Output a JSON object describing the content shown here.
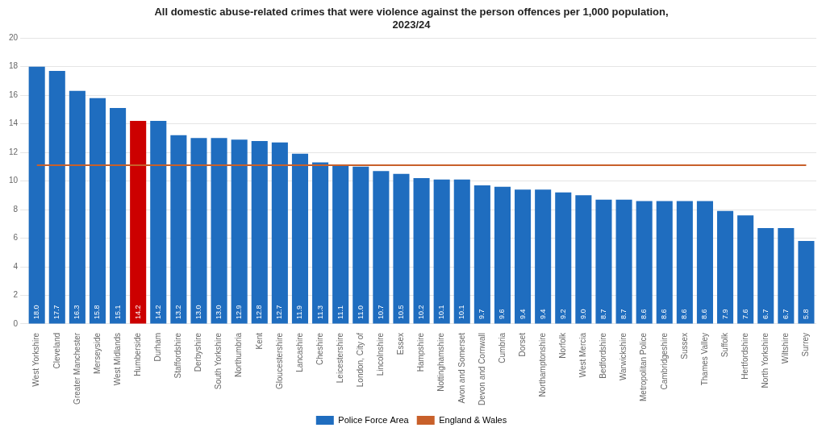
{
  "chart_data": {
    "type": "bar",
    "title": "All domestic abuse-related crimes that were violence against the person offences per 1,000 population,\n2023/24",
    "categories": [
      "West Yorkshire",
      "Cleveland",
      "Greater Manchester",
      "Merseyside",
      "West Midlands",
      "Humberside",
      "Durham",
      "Staffordshire",
      "Derbyshire",
      "South Yorkshire",
      "Northumbria",
      "Kent",
      "Gloucestershire",
      "Lancashire",
      "Cheshire",
      "Leicestershire",
      "London, City of",
      "Lincolnshire",
      "Essex",
      "Hampshire",
      "Nottinghamshire",
      "Avon and Somerset",
      "Devon and Cornwall",
      "Cumbria",
      "Dorset",
      "Northamptonshire",
      "Norfolk",
      "West Mercia",
      "Bedfordshire",
      "Warwickshire",
      "Metropolitan Police",
      "Cambridgeshire",
      "Sussex",
      "Thames Valley",
      "Suffolk",
      "Hertfordshire",
      "North Yorkshire",
      "Wiltshire",
      "Surrey"
    ],
    "series": [
      {
        "name": "Police Force Area",
        "colors": [
          "#1f6dbf",
          "#1f6dbf",
          "#1f6dbf",
          "#1f6dbf",
          "#1f6dbf",
          "#cc0000",
          "#1f6dbf",
          "#1f6dbf",
          "#1f6dbf",
          "#1f6dbf",
          "#1f6dbf",
          "#1f6dbf",
          "#1f6dbf",
          "#1f6dbf",
          "#1f6dbf",
          "#1f6dbf",
          "#1f6dbf",
          "#1f6dbf",
          "#1f6dbf",
          "#1f6dbf",
          "#1f6dbf",
          "#1f6dbf",
          "#1f6dbf",
          "#1f6dbf",
          "#1f6dbf",
          "#1f6dbf",
          "#1f6dbf",
          "#1f6dbf",
          "#1f6dbf",
          "#1f6dbf",
          "#1f6dbf",
          "#1f6dbf",
          "#1f6dbf",
          "#1f6dbf",
          "#1f6dbf",
          "#1f6dbf",
          "#1f6dbf",
          "#1f6dbf",
          "#1f6dbf"
        ],
        "values": [
          18.0,
          17.7,
          16.3,
          15.8,
          15.1,
          14.2,
          14.2,
          13.2,
          13.0,
          13.0,
          12.9,
          12.8,
          12.7,
          11.9,
          11.3,
          11.1,
          11.0,
          10.7,
          10.5,
          10.2,
          10.1,
          10.1,
          9.7,
          9.6,
          9.4,
          9.4,
          9.2,
          9.0,
          8.7,
          8.7,
          8.6,
          8.6,
          8.6,
          8.6,
          7.9,
          7.6,
          6.7,
          6.7,
          5.8
        ],
        "value_labels": [
          "18.0",
          "17.7",
          "16.3",
          "15.8",
          "15.1",
          "14.2",
          "14.2",
          "13.2",
          "13.0",
          "13.0",
          "12.9",
          "12.8",
          "12.7",
          "11.9",
          "11.3",
          "11.1",
          "11.0",
          "10.7",
          "10.5",
          "10.2",
          "10.1",
          "10.1",
          "9.7",
          "9.6",
          "9.4",
          "9.4",
          "9.2",
          "9.0",
          "8.7",
          "8.7",
          "8.6",
          "8.6",
          "8.6",
          "8.6",
          "7.9",
          "7.6",
          "6.7",
          "6.7",
          "5.8"
        ]
      },
      {
        "name": "England & Wales",
        "type": "line",
        "color": "#c8602a",
        "values": [
          11.1,
          11.1,
          11.1,
          11.1,
          11.1,
          11.1,
          11.1,
          11.1,
          11.1,
          11.1,
          11.1,
          11.1,
          11.1,
          11.1,
          11.1,
          11.1,
          11.1,
          11.1,
          11.1,
          11.1,
          11.1,
          11.1,
          11.1,
          11.1,
          11.1,
          11.1,
          11.1,
          11.1,
          11.1,
          11.1,
          11.1,
          11.1,
          11.1,
          11.1,
          11.1,
          11.1,
          11.1,
          11.1,
          11.1
        ]
      }
    ],
    "ylim": [
      0,
      20
    ],
    "yticks": [
      0,
      2,
      4,
      6,
      8,
      10,
      12,
      14,
      16,
      18,
      20
    ],
    "grid": true,
    "legend": "bottom",
    "data_labels": true
  }
}
